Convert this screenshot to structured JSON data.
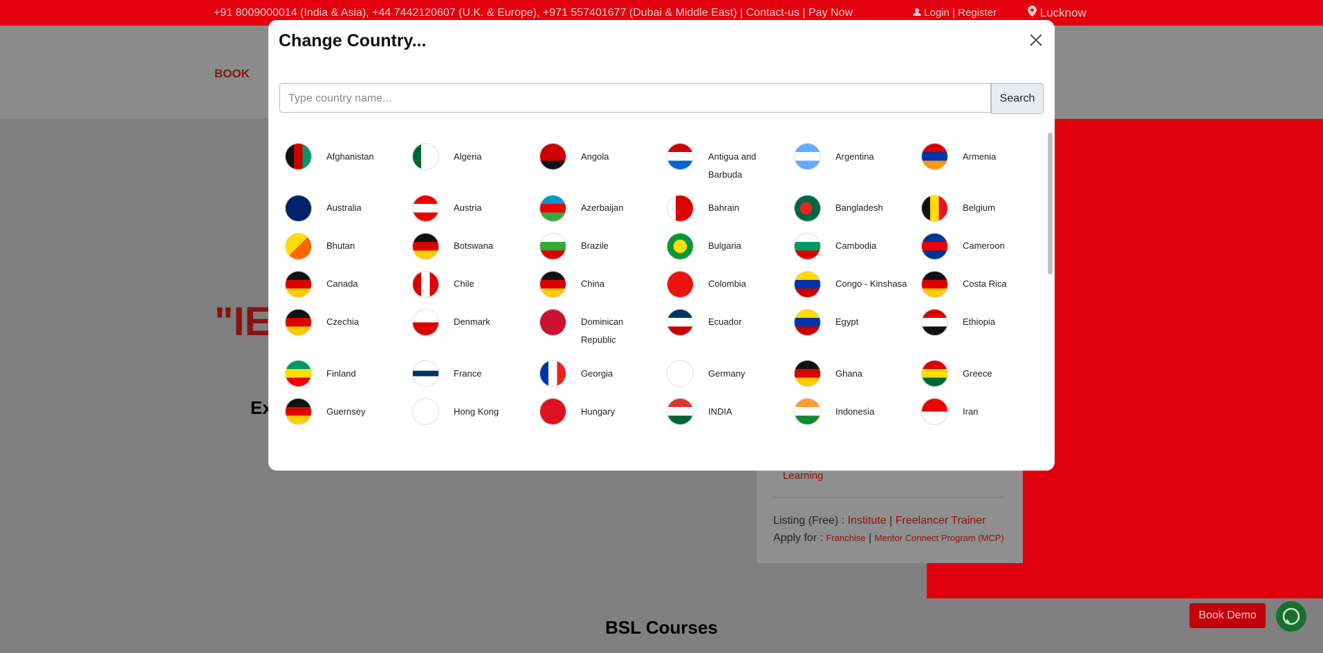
{
  "topbar": {
    "contact": "+91 8009000014 (India & Asia), +44 7442120607 (U.K. & Europe), +971 557401677 (Dubai & Middle East) | Contact-us | Pay Now",
    "login": "Login",
    "separator": "|",
    "register": "Register",
    "location": "Lucknow"
  },
  "header": {
    "logo": "BOOK"
  },
  "background": {
    "hero_quote": "\"IE",
    "hero_sub": "Ex",
    "card_link": "Learning",
    "listing_label": "Listing (Free) :",
    "listing_institute": "Institute",
    "listing_sep": "|",
    "listing_freelancer": "Freelancer Trainer",
    "apply_label": "Apply for :",
    "apply_franchise": "Franchise",
    "apply_sep": "|",
    "apply_mcp": "Mentor Connect Program (MCP)",
    "section_title": "BSL Courses",
    "book_demo": "Book Demo"
  },
  "modal": {
    "title": "Change Country...",
    "search_placeholder": "Type country name...",
    "search_button": "Search",
    "countries": [
      "Afghanistan",
      "Algeria",
      "Angola",
      "Antigua and Barbuda",
      "Argentina",
      "Armenia",
      "Australia",
      "Austria",
      "Azerbaijan",
      "Bahrain",
      "Bangladesh",
      "Belgium",
      "Bhutan",
      "Botswana",
      "Brazile",
      "Bulgaria",
      "Cambodia",
      "Cameroon",
      "Canada",
      "Chile",
      "China",
      "Colombia",
      "Congo - Kinshasa",
      "Costa Rica",
      "Czechia",
      "Denmark",
      "Dominican Republic",
      "Ecuador",
      "Egypt",
      "Ethiopia",
      "Finland",
      "France",
      "Georgia",
      "Germany",
      "Ghana",
      "Greece",
      "Guernsey",
      "Hong Kong",
      "Hungary",
      "INDIA",
      "Indonesia",
      "Iran"
    ]
  }
}
